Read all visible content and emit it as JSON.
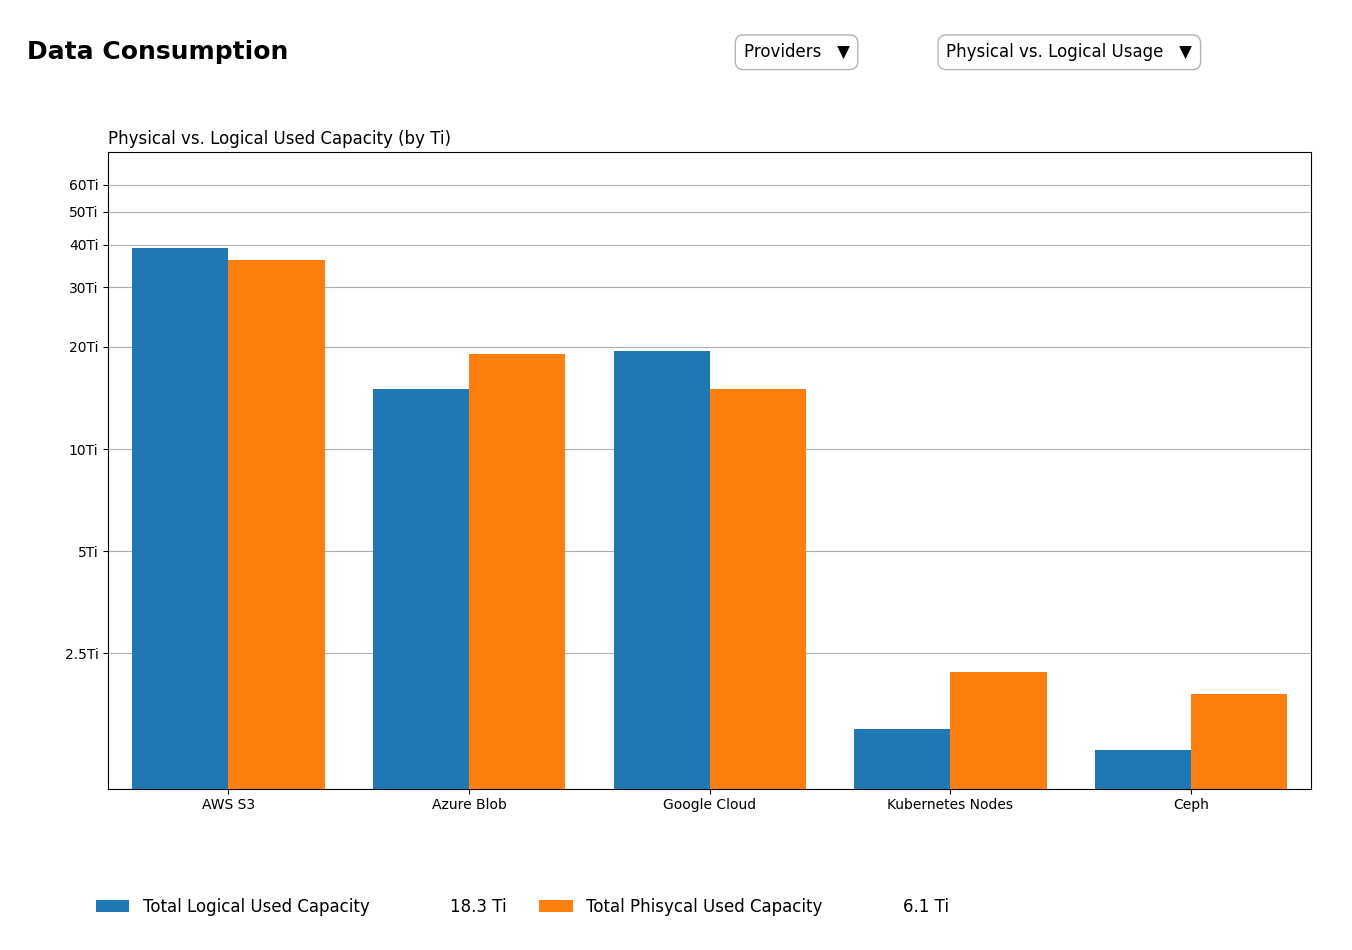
{
  "chart_data": {
    "type": "bar",
    "title": "Data Consumption",
    "subtitle": "Physical vs. Logical Used Capacity (by Ti)",
    "categories": [
      "AWS S3",
      "Azure Blob",
      "Google Cloud",
      "Kubernetes Nodes",
      "Ceph"
    ],
    "series": [
      {
        "name": "Total Logical Used Capacity",
        "values": [
          39.0,
          15.0,
          19.5,
          1.5,
          1.3
        ]
      },
      {
        "name": "Total Phisycal Used Capacity",
        "values": [
          36.0,
          19.0,
          15.0,
          2.2,
          1.9
        ]
      }
    ],
    "log": "y",
    "ylim": [
      1.0,
      75
    ],
    "yticks": [
      {
        "value": 2.5,
        "label": "2.5Ti"
      },
      {
        "value": 5,
        "label": "5Ti"
      },
      {
        "value": 10,
        "label": "10Ti"
      },
      {
        "value": 20,
        "label": "20Ti"
      },
      {
        "value": 30,
        "label": "30Ti"
      },
      {
        "value": 40,
        "label": "40Ti"
      },
      {
        "value": 50,
        "label": "50Ti"
      },
      {
        "value": 60,
        "label": "60Ti"
      }
    ],
    "grid": true,
    "legend": "lower left",
    "annotations": [
      "Providers   ▼",
      "Physical vs. Logical Usage   ▼",
      "18.3 Ti",
      "6.1 Ti"
    ]
  }
}
